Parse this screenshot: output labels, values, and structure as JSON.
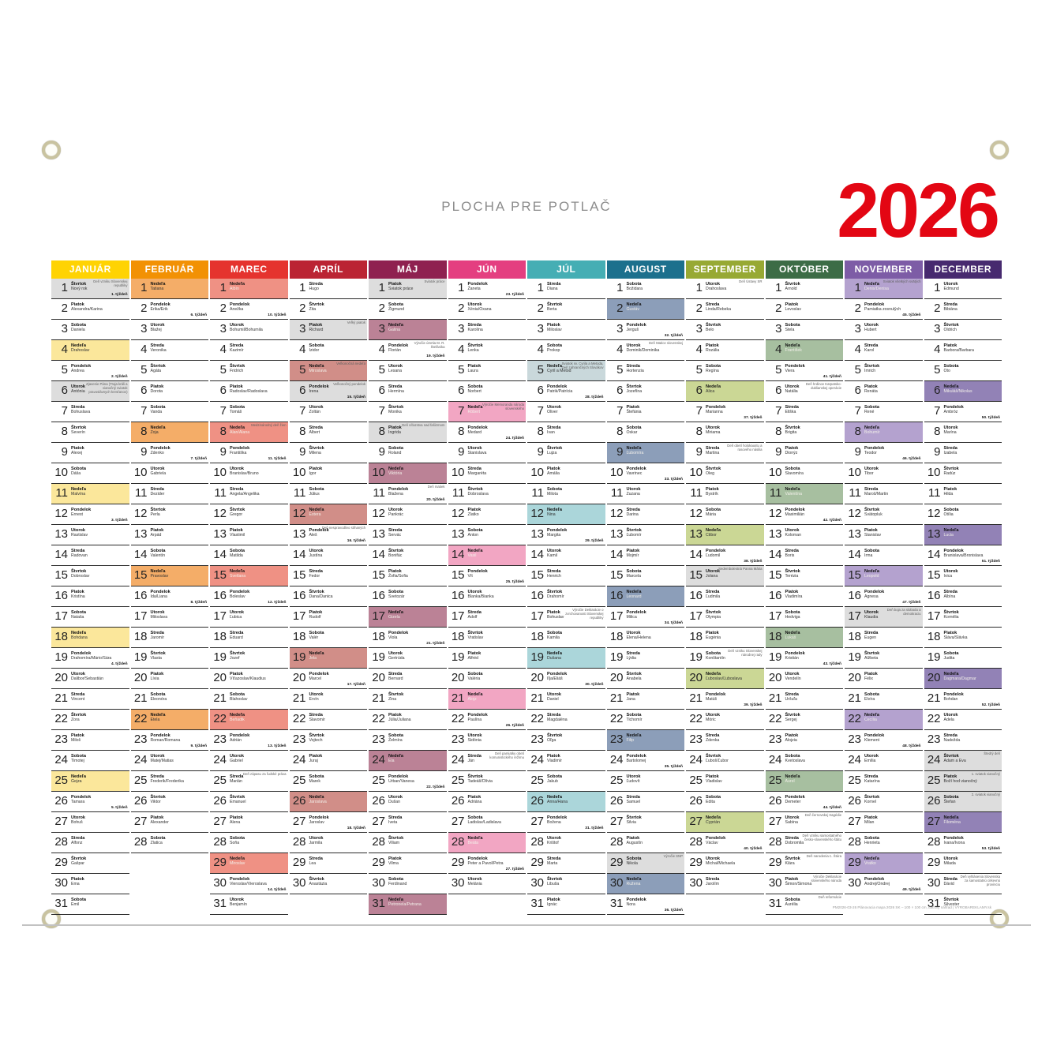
{
  "title": "PLOCHA PRE POTLAČ",
  "year": "2026",
  "footer": "PM2026-03-26 Plánovacia mapa 2026 SK – 100 × 100 cm, tlačový náhľad | VYROBAREKLAMY.sk",
  "colors": {
    "holiday": "#dddddd",
    "year_red": "#e30613",
    "title_gray": "#8c8c8c"
  },
  "dow_names": [
    "Pondelok",
    "Utorok",
    "Streda",
    "Štvrtok",
    "Piatok",
    "Sobota",
    "Nedeľa"
  ],
  "months": [
    {
      "name": "JANUÁR",
      "days": 31,
      "first_dow": 3,
      "color": "#ffd303",
      "sunday_color": "#fbe79b",
      "sun_text": "dark",
      "names": [
        "Nový rok",
        "Alexandra/Karina",
        "Daniela",
        "Drahoslav",
        "Andrea",
        "Antónia",
        "Bohuslava",
        "Severín",
        "Alexej",
        "Dáša",
        "Malvína",
        "Ernest",
        "Rastislav",
        "Radovan",
        "Dobroslav",
        "Kristína",
        "Nataša",
        "Bohdana",
        "Drahomíra/Mário/Sára",
        "Dalibor/Sebastián",
        "Vincent",
        "Zora",
        "Miloš",
        "Timotej",
        "Gejza",
        "Tamara",
        "Bohuš",
        "Alfonz",
        "Gašpar",
        "Ema",
        "Emil"
      ],
      "specials": {
        "1": {
          "hol": true,
          "note": "Deň vzniku Slovenskej republiky",
          "week": "1. týždeň"
        },
        "5": {
          "week": "2. týždeň"
        },
        "6": {
          "hol": true,
          "note": "Zjavenie Pána (Traja králi a vianočný sviatok pravoslávnych kresťanov)"
        },
        "12": {
          "week": "3. týždeň"
        },
        "19": {
          "week": "4. týždeň"
        },
        "26": {
          "week": "5. týždeň"
        }
      }
    },
    {
      "name": "FEBRUÁR",
      "days": 28,
      "first_dow": 6,
      "color": "#f29104",
      "sunday_color": "#f4ad68",
      "sun_text": "dark",
      "names": [
        "Tatiana",
        "Erika/Erik",
        "Blažej",
        "Veronika",
        "Agáta",
        "Dorota",
        "Vanda",
        "Zoja",
        "Zdenko",
        "Gabriela",
        "Dezider",
        "Perla",
        "Arpád",
        "Valentín",
        "Pravoslav",
        "Ida/Liana",
        "Miloslava",
        "Jaromír",
        "Vlasta",
        "Lívia",
        "Eleonóra",
        "Etela",
        "Roman/Romana",
        "Matej/Matias",
        "Frederik/Frederika",
        "Viktor",
        "Alexander",
        "Zlatica"
      ],
      "specials": {
        "2": {
          "week": "6. týždeň"
        },
        "9": {
          "week": "7. týždeň"
        },
        "16": {
          "week": "8. týždeň"
        },
        "23": {
          "week": "9. týždeň"
        }
      }
    },
    {
      "name": "MAREC",
      "days": 31,
      "first_dow": 6,
      "color": "#e5332e",
      "sunday_color": "#ef9184",
      "sun_text": "light",
      "names": [
        "Albín",
        "Anežka",
        "Bohumil/Bohumila",
        "Kazimír",
        "Fridrich",
        "Radoslav/Radoslava",
        "Tomáš",
        "Alan/Alana",
        "Františka",
        "Branislav/Bruno",
        "Angela/Angelika",
        "Gregor",
        "Vlastimil",
        "Matilda",
        "Svetlana",
        "Boleslav",
        "Ľubica",
        "Eduard",
        "Jozef",
        "Víťazoslav/Klaudius",
        "Blahoslav",
        "Beňadik",
        "Adrián",
        "Gabriel",
        "Marián",
        "Emanuel",
        "Alena",
        "Soňa",
        "Miroslav",
        "Vieroslav/Vieroslava",
        "Benjamín"
      ],
      "specials": {
        "2": {
          "week": "10. týždeň"
        },
        "8": {
          "note": "Medzinárodný deň žien"
        },
        "9": {
          "week": "11. týždeň"
        },
        "16": {
          "week": "12. týždeň"
        },
        "23": {
          "week": "13. týždeň"
        },
        "25": {
          "note": "Deň zápasu za ľudské práva"
        },
        "30": {
          "week": "14. týždeň"
        }
      }
    },
    {
      "name": "APRÍL",
      "days": 30,
      "first_dow": 2,
      "color": "#bb2433",
      "sunday_color": "#d18e88",
      "sun_text": "light",
      "names": [
        "Hugo",
        "Zita",
        "Richard",
        "Izidor",
        "Miroslava",
        "Irena",
        "Zoltán",
        "Albert",
        "Milena",
        "Igor",
        "Július",
        "Estera",
        "Aleš",
        "Justína",
        "Fedor",
        "Dana/Danica",
        "Rudolf",
        "Valér",
        "Jela",
        "Marcel",
        "Ervín",
        "Slavomír",
        "Vojtech",
        "Juraj",
        "Marek",
        "Jaroslava",
        "Jaroslav",
        "Jarmila",
        "Lea",
        "Anastázia"
      ],
      "specials": {
        "3": {
          "hol": true,
          "note": "Veľký piatok"
        },
        "5": {
          "note": "Veľkonočná nedeľa"
        },
        "6": {
          "hol": true,
          "note": "Veľkonočný pondelok",
          "week": "15. týždeň"
        },
        "13": {
          "note": "Deň nespravodlivo stíhaných",
          "week": "16. týždeň"
        },
        "20": {
          "week": "17. týždeň"
        },
        "27": {
          "week": "18. týždeň"
        }
      }
    },
    {
      "name": "MÁJ",
      "days": 31,
      "first_dow": 4,
      "color": "#8f2150",
      "sunday_color": "#bb8296",
      "sun_text": "light",
      "names": [
        "Sviatok práce",
        "Žigmund",
        "Galina",
        "Florián",
        "Lesana",
        "Hermína",
        "Monika",
        "Ingrida",
        "Roland",
        "Viktória",
        "Blažena",
        "Pankrác",
        "Servác",
        "Bonifác",
        "Žofia/Sofia",
        "Svetozár",
        "Gizela",
        "Viola",
        "Gertrúda",
        "Bernard",
        "Zina",
        "Júlia/Juliana",
        "Želmíra",
        "Ela",
        "Urban/Vanesa",
        "Dušan",
        "Iveta",
        "Viliam",
        "Vilma",
        "Ferdinand",
        "Petronela/Petrana"
      ],
      "specials": {
        "1": {
          "hol": true,
          "note": "Sviatok práce"
        },
        "4": {
          "note": "Výročie úmrtia M. R. Štefánika",
          "week": "19. týždeň"
        },
        "8": {
          "hol": true,
          "note": "Deň víťazstva nad fašizmom"
        },
        "11": {
          "note": "Deň matiek",
          "week": "20. týždeň"
        },
        "18": {
          "week": "21. týždeň"
        },
        "25": {
          "week": "22. týždeň"
        }
      }
    },
    {
      "name": "JÚN",
      "days": 30,
      "first_dow": 0,
      "color": "#e43f80",
      "sunday_color": "#f2a6c3",
      "sun_text": "light",
      "names": [
        "Žaneta",
        "Xénia/Oxana",
        "Karolína",
        "Lenka",
        "Laura",
        "Norbert",
        "Róbert",
        "Medard",
        "Stanislava",
        "Margaréta",
        "Dobroslava",
        "Zlatko",
        "Anton",
        "Vasil",
        "Vít",
        "Blanka/Bianka",
        "Adolf",
        "Vratislav",
        "Alfréd",
        "Valéria",
        "Alojz",
        "Paulína",
        "Sidónia",
        "Ján",
        "Tadeáš/Olívia",
        "Adriána",
        "Ladislav/Ladislava",
        "Beáta",
        "Peter a Pavol/Petra",
        "Melánia"
      ],
      "specials": {
        "1": {
          "week": "23. týždeň"
        },
        "7": {
          "note": "Výročie Memoranda národa slovenského"
        },
        "8": {
          "week": "24. týždeň"
        },
        "15": {
          "week": "25. týždeň"
        },
        "22": {
          "week": "26. týždeň"
        },
        "24": {
          "note": "Deň pamiatky obetí komunistického režimu"
        },
        "29": {
          "week": "27. týždeň"
        }
      }
    },
    {
      "name": "JÚL",
      "days": 31,
      "first_dow": 2,
      "color": "#45aeb4",
      "sunday_color": "#abd6da",
      "sun_text": "dark",
      "names": [
        "Diana",
        "Berta",
        "Miloslav",
        "Prokop",
        "Cyril a Metod",
        "Patrik/Patrícia",
        "Oliver",
        "Ivan",
        "Lujza",
        "Amália",
        "Milota",
        "Nina",
        "Margita",
        "Kamil",
        "Henrich",
        "Drahomír",
        "Bohuslav",
        "Kamila",
        "Dušana",
        "Iľja/Eliáš",
        "Daniel",
        "Magdaléna",
        "Oľga",
        "Vladimír",
        "Jakub",
        "Anna/Hana",
        "Božena",
        "Krištof",
        "Marta",
        "Libuša",
        "Ignác"
      ],
      "specials": {
        "5": {
          "hol": true,
          "hol_color": "#c9d8db",
          "note": "Sviatok sv. Cyrila a Metoda, Deň zahraničných Slovákov"
        },
        "6": {
          "week": "28. týždeň"
        },
        "13": {
          "week": "29. týždeň"
        },
        "17": {
          "note": "Výročie Deklarácie o zvrchovanosti Slovenskej republiky"
        },
        "20": {
          "week": "30. týždeň"
        },
        "27": {
          "week": "31. týždeň"
        }
      }
    },
    {
      "name": "AUGUST",
      "days": 31,
      "first_dow": 5,
      "color": "#1c708d",
      "sunday_color": "#8c9eb9",
      "sun_text": "light",
      "names": [
        "Božidara",
        "Gustáv",
        "Jerguš",
        "Dominik/Dominika",
        "Hortenzia",
        "Jozefína",
        "Štefánia",
        "Oskar",
        "Ľubomíra",
        "Vavrinec",
        "Zuzana",
        "Darina",
        "Ľubomír",
        "Mojmír",
        "Marcela",
        "Leonard",
        "Milica",
        "Elena/Helena",
        "Lýdia",
        "Anabela",
        "Jana",
        "Tichomír",
        "Filip",
        "Bartolomej",
        "Ľudovít",
        "Samuel",
        "Silvia",
        "Augustín",
        "Nikola",
        "Ružena",
        "Nora"
      ],
      "specials": {
        "3": {
          "week": "32. týždeň"
        },
        "4": {
          "note": "Deň Matice slovenskej"
        },
        "10": {
          "week": "33. týždeň"
        },
        "17": {
          "week": "34. týždeň"
        },
        "24": {
          "week": "35. týždeň"
        },
        "29": {
          "hol": true,
          "note": "Výročie SNP"
        },
        "31": {
          "week": "36. týždeň"
        }
      }
    },
    {
      "name": "SEPTEMBER",
      "days": 30,
      "first_dow": 1,
      "color": "#97a934",
      "sunday_color": "#cbd795",
      "sun_text": "dark",
      "names": [
        "Drahoslava",
        "Linda/Rebeka",
        "Belo",
        "Rozália",
        "Regína",
        "Alica",
        "Marianna",
        "Miriama",
        "Martina",
        "Oleg",
        "Bystrík",
        "Mária",
        "Ctibor",
        "Ľudomil",
        "Jolana",
        "Ľudmila",
        "Olympia",
        "Eugénia",
        "Konštantín",
        "Ľuboslav/Ľuboslava",
        "Matúš",
        "Móric",
        "Zdenka",
        "Ľuboš/Ľubor",
        "Vladislav",
        "Edita",
        "Cyprián",
        "Václav",
        "Michal/Michaela",
        "Jarolím"
      ],
      "specials": {
        "1": {
          "note": "Deň Ústavy SR"
        },
        "7": {
          "week": "37. týždeň"
        },
        "9": {
          "note": "Deň obetí holokaustu a rasového násilia"
        },
        "14": {
          "week": "38. týždeň"
        },
        "15": {
          "hol": true,
          "note": "Sedembolestná Panna Mária"
        },
        "19": {
          "note": "Deň vzniku Slovenskej národnej rady"
        },
        "21": {
          "week": "39. týždeň"
        },
        "28": {
          "week": "40. týždeň"
        }
      }
    },
    {
      "name": "OKTÓBER",
      "days": 31,
      "first_dow": 3,
      "color": "#3c6c46",
      "sunday_color": "#a7bfa0",
      "sun_text": "light",
      "names": [
        "Arnold",
        "Levoslav",
        "Stela",
        "František",
        "Viera",
        "Natália",
        "Eliška",
        "Brigita",
        "Dionýz",
        "Slavomíra",
        "Valentína",
        "Maximilián",
        "Koloman",
        "Boris",
        "Terézia",
        "Vladimíra",
        "Hedviga",
        "Lukáš",
        "Kristián",
        "Vendelín",
        "Uršuľa",
        "Sergej",
        "Alojzia",
        "Kvetoslava",
        "Aurel",
        "Demeter",
        "Sabína",
        "Dobromila",
        "Klára",
        "Šimon/Simona",
        "Aurélia"
      ],
      "specials": {
        "5": {
          "week": "41. týždeň"
        },
        "6": {
          "note": "Deň hrdinov Karpatsko-duklianskej operácie"
        },
        "12": {
          "week": "42. týždeň"
        },
        "19": {
          "week": "43. týždeň"
        },
        "26": {
          "week": "44. týždeň"
        },
        "27": {
          "note": "Deň černovskej tragédie"
        },
        "28": {
          "note": "Deň vzniku samostatného česko-slovenského štátu"
        },
        "29": {
          "note": "Deň narodenia Ľ. Štúra"
        },
        "30": {
          "note": "Výročie Deklarácie slovenského národa"
        },
        "31": {
          "note": "Deň reformácie"
        }
      }
    },
    {
      "name": "NOVEMBER",
      "days": 30,
      "first_dow": 6,
      "color": "#7d5ca6",
      "sunday_color": "#b4a2cf",
      "sun_text": "light",
      "names": [
        "Denis/Denisa",
        "Pamiatka zosnulých",
        "Hubert",
        "Karol",
        "Imrich",
        "Renáta",
        "René",
        "Bohumír",
        "Teodor",
        "Tibor",
        "Maroš/Martin",
        "Svätopluk",
        "Stanislav",
        "Irma",
        "Leopold",
        "Agnesa",
        "Klaudia",
        "Eugen",
        "Alžbeta",
        "Félix",
        "Elvíra",
        "Cecília",
        "Klement",
        "Emília",
        "Katarína",
        "Kornel",
        "Milan",
        "Henrieta",
        "Vratko",
        "Andrej/Ondrej"
      ],
      "specials": {
        "1": {
          "note": "Sviatok všetkých svätých"
        },
        "2": {
          "week": "45. týždeň"
        },
        "9": {
          "week": "46. týždeň"
        },
        "16": {
          "week": "47. týždeň"
        },
        "17": {
          "hol": true,
          "note": "Deň boja za slobodu a demokraciu"
        },
        "23": {
          "week": "48. týždeň"
        },
        "30": {
          "week": "49. týždeň"
        }
      }
    },
    {
      "name": "DECEMBER",
      "days": 31,
      "first_dow": 1,
      "color": "#472a6f",
      "sunday_color": "#9282b6",
      "sun_text": "light",
      "names": [
        "Edmund",
        "Bibiána",
        "Oldrich",
        "Barbora/Barbara",
        "Oto",
        "Mikuláš/Nikolas",
        "Ambróz",
        "Marína",
        "Izabela",
        "Radúz",
        "Hilda",
        "Otília",
        "Lucia",
        "Branislava/Bronislava",
        "Ivica",
        "Albína",
        "Kornélia",
        "Sláva/Slávka",
        "Judita",
        "Dagmara/Dagmar",
        "Bohdan",
        "Adela",
        "Nadežda",
        "Adam a Eva",
        "Boží hod vianočný",
        "Štefan",
        "Filoména",
        "Ivana/Ivona",
        "Milada",
        "Dávid",
        "Silvester"
      ],
      "specials": {
        "7": {
          "week": "50. týždeň"
        },
        "14": {
          "week": "51. týždeň"
        },
        "21": {
          "week": "52. týždeň"
        },
        "24": {
          "hol": true,
          "note": "Štedrý deň"
        },
        "25": {
          "hol": true,
          "note": "1. sviatok vianočný"
        },
        "26": {
          "hol": true,
          "note": "2. sviatok vianočný"
        },
        "28": {
          "week": "53. týždeň"
        },
        "30": {
          "note": "Deň vyhlásenia Slovenska za samostatnú cirkevnú provinciu"
        }
      }
    }
  ]
}
